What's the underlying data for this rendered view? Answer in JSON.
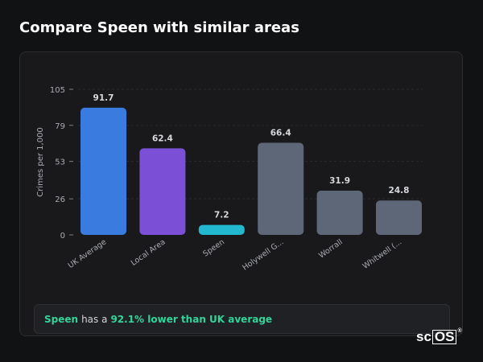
{
  "header": {
    "title": "Compare Speen with similar areas"
  },
  "summary": {
    "area": "Speen",
    "middle_text": "has a",
    "highlight": "92.1% lower than UK average"
  },
  "logo": {
    "prefix": "sc",
    "boxed": "OS",
    "mark": "®"
  },
  "colors": {
    "uk_average": "#3a7be0",
    "local_area": "#7b4fd6",
    "selected": "#22b8d0",
    "other": "#5d6778",
    "accent_text": "#34d399"
  },
  "chart_data": {
    "type": "bar",
    "title": "",
    "xlabel": "",
    "ylabel": "Crimes per 1,000",
    "ylim": [
      0,
      105
    ],
    "yticks": [
      0,
      26,
      53,
      79,
      105
    ],
    "grid": true,
    "categories": [
      "UK Average",
      "Local Area",
      "Speen",
      "Holywell G...",
      "Worrall",
      "Whitwell (..."
    ],
    "values": [
      91.7,
      62.4,
      7.2,
      66.4,
      31.9,
      24.8
    ],
    "value_labels": [
      "91.7",
      "62.4",
      "7.2",
      "66.4",
      "31.9",
      "24.8"
    ],
    "bar_color_keys": [
      "uk_average",
      "local_area",
      "selected",
      "other",
      "other",
      "other"
    ]
  }
}
